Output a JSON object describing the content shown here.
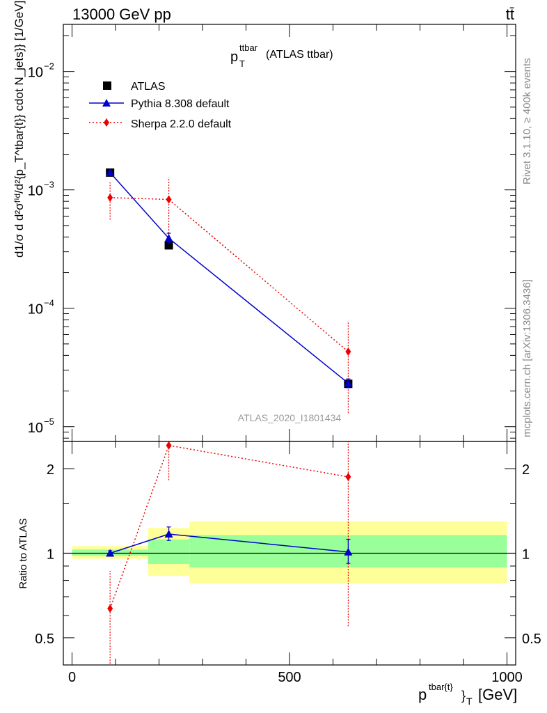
{
  "header": {
    "energy_label": "13000 GeV pp",
    "process_label": "tt̄"
  },
  "side_labels": {
    "rivet": "Rivet 3.1.10, ≥ 400k events",
    "mcplots": "mcplots.cern.ch [arXiv:1306.3436]"
  },
  "chart_data": [
    {
      "type": "line",
      "panel": "main",
      "title_main": "p",
      "title_sup": "ttbar",
      "title_sub": "T",
      "title_suffix": "(ATLAS ttbar)",
      "analysis_label": "ATLAS_2020_I1801434",
      "ylabel": "d\\frac{1}{\\sigma}d\\frac{d^2\\sigma^{fid}}{d^2\\{p^{tbar\\{t}_T}\\} cdot N_{jets}\\}\\} [1/GeV]",
      "ylabel_text": "d1/σ d d²σᶠⁱᵈ/d²{p_T^tbar{t}} cdot N_jets}} [1/GeV]",
      "yscale": "log",
      "ylim": [
        7.5e-06,
        0.025
      ],
      "xlim": [
        -20,
        1020
      ],
      "yticks": [
        {
          "value": 1e-05,
          "base": "10",
          "exp": "−5"
        },
        {
          "value": 0.0001,
          "base": "10",
          "exp": "−4"
        },
        {
          "value": 0.001,
          "base": "10",
          "exp": "−3"
        },
        {
          "value": 0.01,
          "base": "10",
          "exp": "−2"
        }
      ],
      "legend_position": "top-left",
      "series": [
        {
          "name": "ATLAS",
          "color": "#000000",
          "marker": "square",
          "line": "none",
          "x": [
            87.5,
            222.5,
            635
          ],
          "y": [
            0.0014,
            0.00034,
            2.3e-05
          ],
          "yerr_low": [
            4e-05,
            1e-05,
            1.5e-06
          ],
          "yerr_high": [
            4e-05,
            1e-05,
            1.5e-06
          ]
        },
        {
          "name": "Pythia 8.308 default",
          "color": "#0000cc",
          "marker": "triangle",
          "line": "solid",
          "x": [
            87.5,
            222.5,
            635
          ],
          "y": [
            0.0014,
            0.00039,
            2.33e-05
          ],
          "yerr_low": [
            4e-05,
            3e-05,
            2e-06
          ],
          "yerr_high": [
            4e-05,
            4e-05,
            2e-06
          ]
        },
        {
          "name": "Sherpa 2.2.0 default",
          "color": "#ee0000",
          "marker": "diamond",
          "line": "dotted",
          "x": [
            87.5,
            222.5,
            635
          ],
          "y": [
            0.00086,
            0.00083,
            4.3e-05
          ],
          "yerr_low": [
            0.0003,
            0.0004,
            3e-05
          ],
          "yerr_high": [
            0.0003,
            0.00045,
            3.5e-05
          ]
        }
      ]
    },
    {
      "type": "line",
      "panel": "ratio",
      "ylabel": "Ratio to ATLAS",
      "xlabel_main": "p",
      "xlabel_sup": "tbar{t}",
      "xlabel_sub": "}",
      "xlabel_sub2": "T",
      "xlabel_unit": "[GeV]",
      "yscale": "log",
      "ylim": [
        0.4,
        2.5
      ],
      "xlim": [
        -20,
        1020
      ],
      "xticks": [
        0,
        500,
        1000
      ],
      "yticks": [
        0.5,
        1,
        2
      ],
      "reference_line": 1,
      "bands": [
        {
          "x0": 0,
          "x1": 175,
          "inner": [
            0.98,
            1.03
          ],
          "outer": [
            0.955,
            1.06
          ]
        },
        {
          "x0": 175,
          "x1": 270,
          "inner": [
            0.915,
            1.12
          ],
          "outer": [
            0.83,
            1.23
          ]
        },
        {
          "x0": 270,
          "x1": 1000,
          "inner": [
            0.89,
            1.16
          ],
          "outer": [
            0.78,
            1.3
          ]
        }
      ],
      "band_colors": {
        "inner": "#99ff99",
        "outer": "#ffff99"
      },
      "series": [
        {
          "name": "Pythia 8.308 default",
          "color": "#0000cc",
          "marker": "triangle",
          "line": "solid",
          "x": [
            87.5,
            222.5,
            635
          ],
          "y": [
            1.0,
            1.17,
            1.01
          ],
          "yerr_low": [
            0.02,
            0.06,
            0.09
          ],
          "yerr_high": [
            0.02,
            0.07,
            0.11
          ]
        },
        {
          "name": "Sherpa 2.2.0 default",
          "color": "#ee0000",
          "marker": "diamond",
          "line": "dotted",
          "x": [
            87.5,
            222.5,
            635
          ],
          "y": [
            0.635,
            2.42,
            1.87
          ],
          "yerr_low": [
            0.24,
            0.6,
            1.32
          ],
          "yerr_high": [
            0.23,
            0.3,
            0.8
          ]
        }
      ]
    }
  ]
}
